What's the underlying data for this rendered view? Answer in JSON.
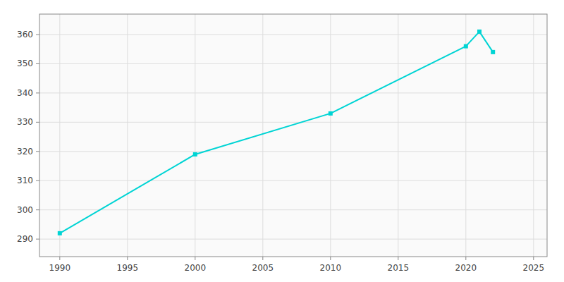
{
  "chart_data": {
    "type": "line",
    "x": [
      1990,
      2000,
      2010,
      2020,
      2021,
      2022
    ],
    "values": [
      292,
      319,
      333,
      356,
      361,
      354
    ],
    "color": "#00D4D4",
    "marker": "square",
    "xlim": [
      1988.5,
      2026
    ],
    "ylim": [
      284,
      367
    ],
    "xticks": [
      1990,
      1995,
      2000,
      2005,
      2010,
      2015,
      2020,
      2025
    ],
    "yticks": [
      290,
      300,
      310,
      320,
      330,
      340,
      350,
      360
    ],
    "grid": true
  }
}
